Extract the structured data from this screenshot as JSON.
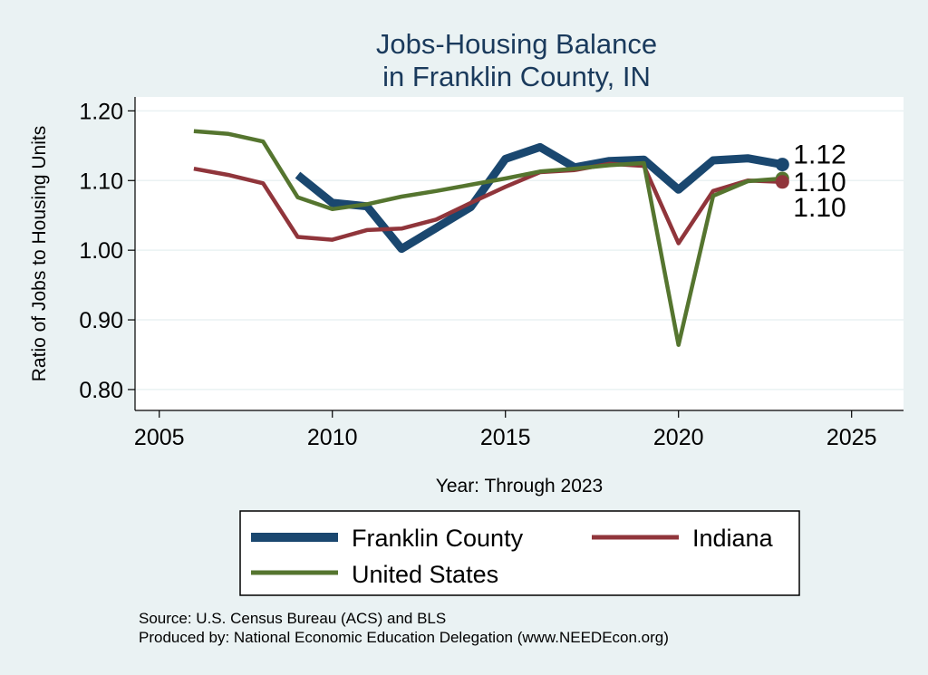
{
  "chart_data": {
    "type": "line",
    "title": [
      "Jobs-Housing Balance",
      "in Franklin County, IN"
    ],
    "xlabel": "Year: Through 2023",
    "ylabel": "Ratio of Jobs to Housing Units",
    "xlim": [
      2004.3,
      2026.5
    ],
    "ylim": [
      0.77,
      1.22
    ],
    "xticks": [
      2005,
      2010,
      2015,
      2020,
      2025
    ],
    "yticks": [
      0.8,
      0.9,
      1.0,
      1.1,
      1.2
    ],
    "ytick_labels": [
      "0.80",
      "0.90",
      "1.00",
      "1.10",
      "1.20"
    ],
    "grid": true,
    "series": [
      {
        "name": "Franklin County",
        "color": "#1a476f",
        "width": "thick",
        "end_label": "1.12",
        "x": [
          2009,
          2010,
          2011,
          2012,
          2013,
          2014,
          2015,
          2016,
          2017,
          2018,
          2019,
          2020,
          2021,
          2022,
          2023
        ],
        "values": [
          1.108,
          1.068,
          1.063,
          1.002,
          1.032,
          1.062,
          1.131,
          1.148,
          1.119,
          1.128,
          1.13,
          1.087,
          1.129,
          1.132,
          1.123
        ]
      },
      {
        "name": "Indiana",
        "color": "#90353b",
        "width": "normal",
        "end_label": "1.10",
        "x": [
          2006,
          2007,
          2008,
          2009,
          2010,
          2011,
          2012,
          2013,
          2014,
          2015,
          2016,
          2017,
          2018,
          2019,
          2020,
          2021,
          2022,
          2023
        ],
        "values": [
          1.117,
          1.108,
          1.096,
          1.019,
          1.015,
          1.029,
          1.031,
          1.044,
          1.068,
          1.091,
          1.112,
          1.115,
          1.124,
          1.121,
          1.01,
          1.085,
          1.1,
          1.098
        ]
      },
      {
        "name": "United States",
        "color": "#55752f",
        "width": "normal",
        "end_label": "1.10",
        "x": [
          2006,
          2007,
          2008,
          2009,
          2010,
          2011,
          2012,
          2013,
          2014,
          2015,
          2016,
          2017,
          2018,
          2019,
          2020,
          2021,
          2022,
          2023
        ],
        "values": [
          1.171,
          1.167,
          1.156,
          1.076,
          1.059,
          1.066,
          1.077,
          1.085,
          1.094,
          1.103,
          1.113,
          1.117,
          1.122,
          1.125,
          0.864,
          1.078,
          1.099,
          1.103
        ]
      }
    ],
    "legend": {
      "position": "bottom",
      "entries": [
        "Franklin County",
        "Indiana",
        "United States"
      ]
    }
  },
  "source": {
    "line1": "Source: U.S. Census Bureau (ACS) and BLS",
    "line2": "Produced by: National Economic Education Delegation (www.NEEDEcon.org)"
  }
}
